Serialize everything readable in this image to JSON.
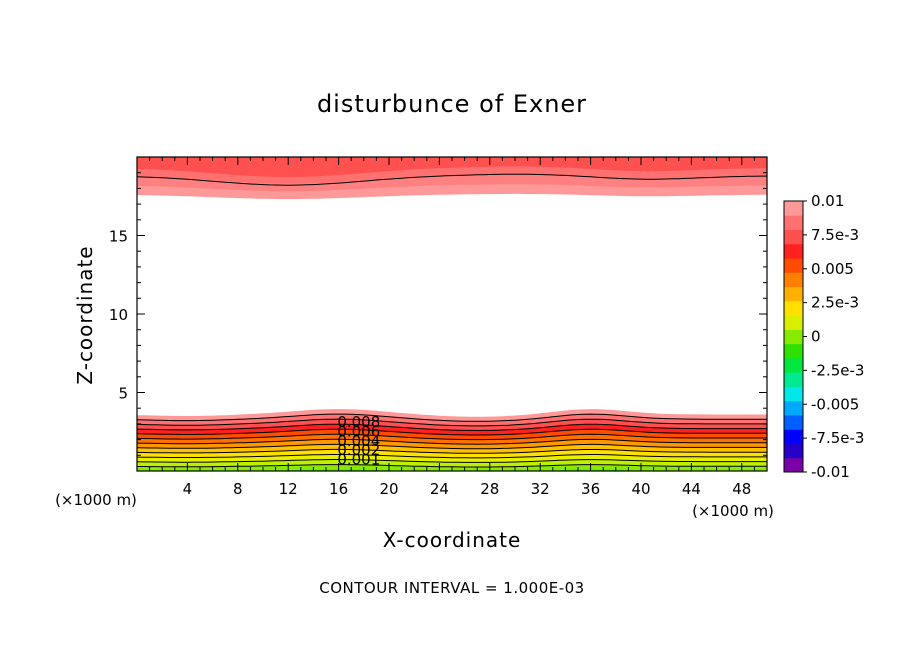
{
  "chart_data": {
    "type": "contour",
    "title": "disturbunce of Exner",
    "xlabel": "X-coordinate",
    "ylabel": "Z-coordinate",
    "x_unit_label": "(×1000 m)",
    "x_unit_label_left": "(×1000 m)",
    "xlim": [
      0,
      50
    ],
    "ylim": [
      0,
      20
    ],
    "x_ticks": [
      4,
      8,
      12,
      16,
      20,
      24,
      28,
      32,
      36,
      40,
      44,
      48
    ],
    "x_tick_labels": [
      "4",
      "8",
      "12",
      "16",
      "20",
      "24",
      "28",
      "32",
      "36",
      "40",
      "44",
      "48"
    ],
    "y_ticks": [
      5,
      10,
      15
    ],
    "y_tick_labels": [
      "5",
      "10",
      "15"
    ],
    "contour_interval_text": "CONTOUR INTERVAL = 1.000E-03",
    "contour_labels": [
      "0.008",
      "0.006",
      "0.004",
      "0.002",
      "0.001"
    ],
    "colorbar": {
      "range": [
        -0.01,
        0.01
      ],
      "tick_labels": [
        "0.01",
        "7.5e-3",
        "0.005",
        "2.5e-3",
        "0",
        "-2.5e-3",
        "-0.005",
        "-7.5e-3",
        "-0.01"
      ],
      "colors": [
        "#7a00a8",
        "#2400c8",
        "#0000ff",
        "#0060ff",
        "#00a8ff",
        "#00e8e8",
        "#00e890",
        "#00e840",
        "#30e000",
        "#88ea00",
        "#d8f000",
        "#ffe000",
        "#ffb000",
        "#ff8000",
        "#ff4c00",
        "#ff2020",
        "#ff5050",
        "#ff7070",
        "#ff9898"
      ]
    },
    "bottom_layer": {
      "z_values": [
        0.0,
        0.3,
        0.6,
        0.9,
        1.2,
        1.5,
        1.8,
        2.1,
        2.4,
        2.7,
        3.0,
        3.3,
        3.6
      ],
      "colors": [
        "#50e000",
        "#88ea00",
        "#c0f000",
        "#e8f000",
        "#ffe000",
        "#ffc000",
        "#ff9800",
        "#ff7000",
        "#ff4c00",
        "#ff2020",
        "#ff5050",
        "#ff7070",
        "#ff9898"
      ]
    },
    "top_layer": {
      "z_values": [
        20.0,
        19.3,
        18.8,
        18.2,
        17.6
      ],
      "colors": [
        "#ff5050",
        "#ff7070",
        "#ff8080",
        "#ff9898"
      ]
    }
  }
}
